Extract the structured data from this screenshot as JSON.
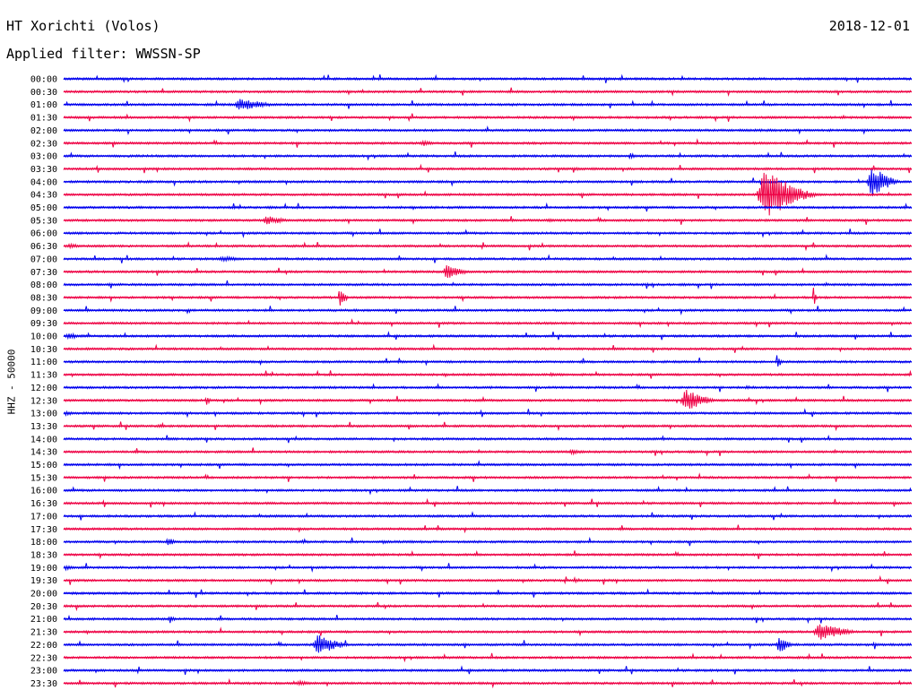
{
  "header": {
    "station": "HT Xorichti (Volos)",
    "filter": "Applied filter: WWSSN-SP",
    "date": "2018-12-01",
    "channel_label": "HHZ - 50000"
  },
  "colors": {
    "blue": "#0000ee",
    "red": "#ee0044"
  },
  "chart_data": {
    "type": "line",
    "subtype": "helicorder",
    "hours": [
      "00:00",
      "00:30",
      "01:00",
      "01:30",
      "02:00",
      "02:30",
      "03:00",
      "03:30",
      "04:00",
      "04:30",
      "05:00",
      "05:30",
      "06:00",
      "06:30",
      "07:00",
      "07:30",
      "08:00",
      "08:30",
      "09:00",
      "09:30",
      "10:00",
      "10:30",
      "11:00",
      "11:30",
      "12:00",
      "12:30",
      "13:00",
      "13:30",
      "14:00",
      "14:30",
      "15:00",
      "15:30",
      "16:00",
      "16:30",
      "17:00",
      "17:30",
      "18:00",
      "18:30",
      "19:00",
      "19:30",
      "20:00",
      "20:30",
      "21:00",
      "21:30",
      "22:00",
      "22:30",
      "23:00",
      "23:30"
    ],
    "trace_colors_alternate": [
      "blue",
      "red"
    ],
    "x_range_minutes": [
      0,
      30
    ],
    "events": [
      {
        "row": 2,
        "start": 6.0,
        "dur": 2.0,
        "amp": 7
      },
      {
        "row": 2,
        "start": 15.8,
        "dur": 0.4,
        "amp": 2
      },
      {
        "row": 5,
        "start": 12.6,
        "dur": 0.8,
        "amp": 4
      },
      {
        "row": 7,
        "start": 18.0,
        "dur": 1.0,
        "amp": 2
      },
      {
        "row": 6,
        "start": 20.0,
        "dur": 0.3,
        "amp": 5
      },
      {
        "row": 9,
        "start": 24.5,
        "dur": 2.5,
        "amp": 28
      },
      {
        "row": 8,
        "start": 28.4,
        "dur": 1.4,
        "amp": 18
      },
      {
        "row": 11,
        "start": 7.0,
        "dur": 1.4,
        "amp": 5
      },
      {
        "row": 11,
        "start": 17.0,
        "dur": 1.0,
        "amp": 2
      },
      {
        "row": 13,
        "start": 0.1,
        "dur": 1.0,
        "amp": 3
      },
      {
        "row": 14,
        "start": 5.4,
        "dur": 1.8,
        "amp": 3
      },
      {
        "row": 15,
        "start": 13.4,
        "dur": 1.2,
        "amp": 9
      },
      {
        "row": 17,
        "start": 9.7,
        "dur": 0.5,
        "amp": 11
      },
      {
        "row": 17,
        "start": 26.5,
        "dur": 0.2,
        "amp": 15
      },
      {
        "row": 20,
        "start": 0.0,
        "dur": 1.5,
        "amp": 3
      },
      {
        "row": 22,
        "start": 25.2,
        "dur": 0.3,
        "amp": 9
      },
      {
        "row": 23,
        "start": 17.0,
        "dur": 2.0,
        "amp": 2
      },
      {
        "row": 24,
        "start": 24.0,
        "dur": 1.2,
        "amp": 2
      },
      {
        "row": 25,
        "start": 21.8,
        "dur": 1.6,
        "amp": 13
      },
      {
        "row": 25,
        "start": 5.0,
        "dur": 0.3,
        "amp": 6
      },
      {
        "row": 26,
        "start": 0.0,
        "dur": 0.6,
        "amp": 3
      },
      {
        "row": 27,
        "start": 3.2,
        "dur": 1.0,
        "amp": 2
      },
      {
        "row": 29,
        "start": 17.8,
        "dur": 1.2,
        "amp": 3
      },
      {
        "row": 36,
        "start": 3.6,
        "dur": 0.6,
        "amp": 5
      },
      {
        "row": 36,
        "start": 8.3,
        "dur": 1.0,
        "amp": 2
      },
      {
        "row": 36,
        "start": 11.2,
        "dur": 0.8,
        "amp": 2
      },
      {
        "row": 38,
        "start": 0.0,
        "dur": 0.6,
        "amp": 3
      },
      {
        "row": 39,
        "start": 18.0,
        "dur": 0.6,
        "amp": 3
      },
      {
        "row": 42,
        "start": 3.7,
        "dur": 0.4,
        "amp": 5
      },
      {
        "row": 43,
        "start": 26.5,
        "dur": 2.0,
        "amp": 10
      },
      {
        "row": 44,
        "start": 8.8,
        "dur": 1.6,
        "amp": 12
      },
      {
        "row": 44,
        "start": 25.2,
        "dur": 0.8,
        "amp": 10
      },
      {
        "row": 44,
        "start": 28.6,
        "dur": 0.4,
        "amp": 3
      },
      {
        "row": 47,
        "start": 8.2,
        "dur": 1.0,
        "amp": 3
      }
    ],
    "xlabel": "",
    "ylabel": "HHZ - 50000"
  }
}
